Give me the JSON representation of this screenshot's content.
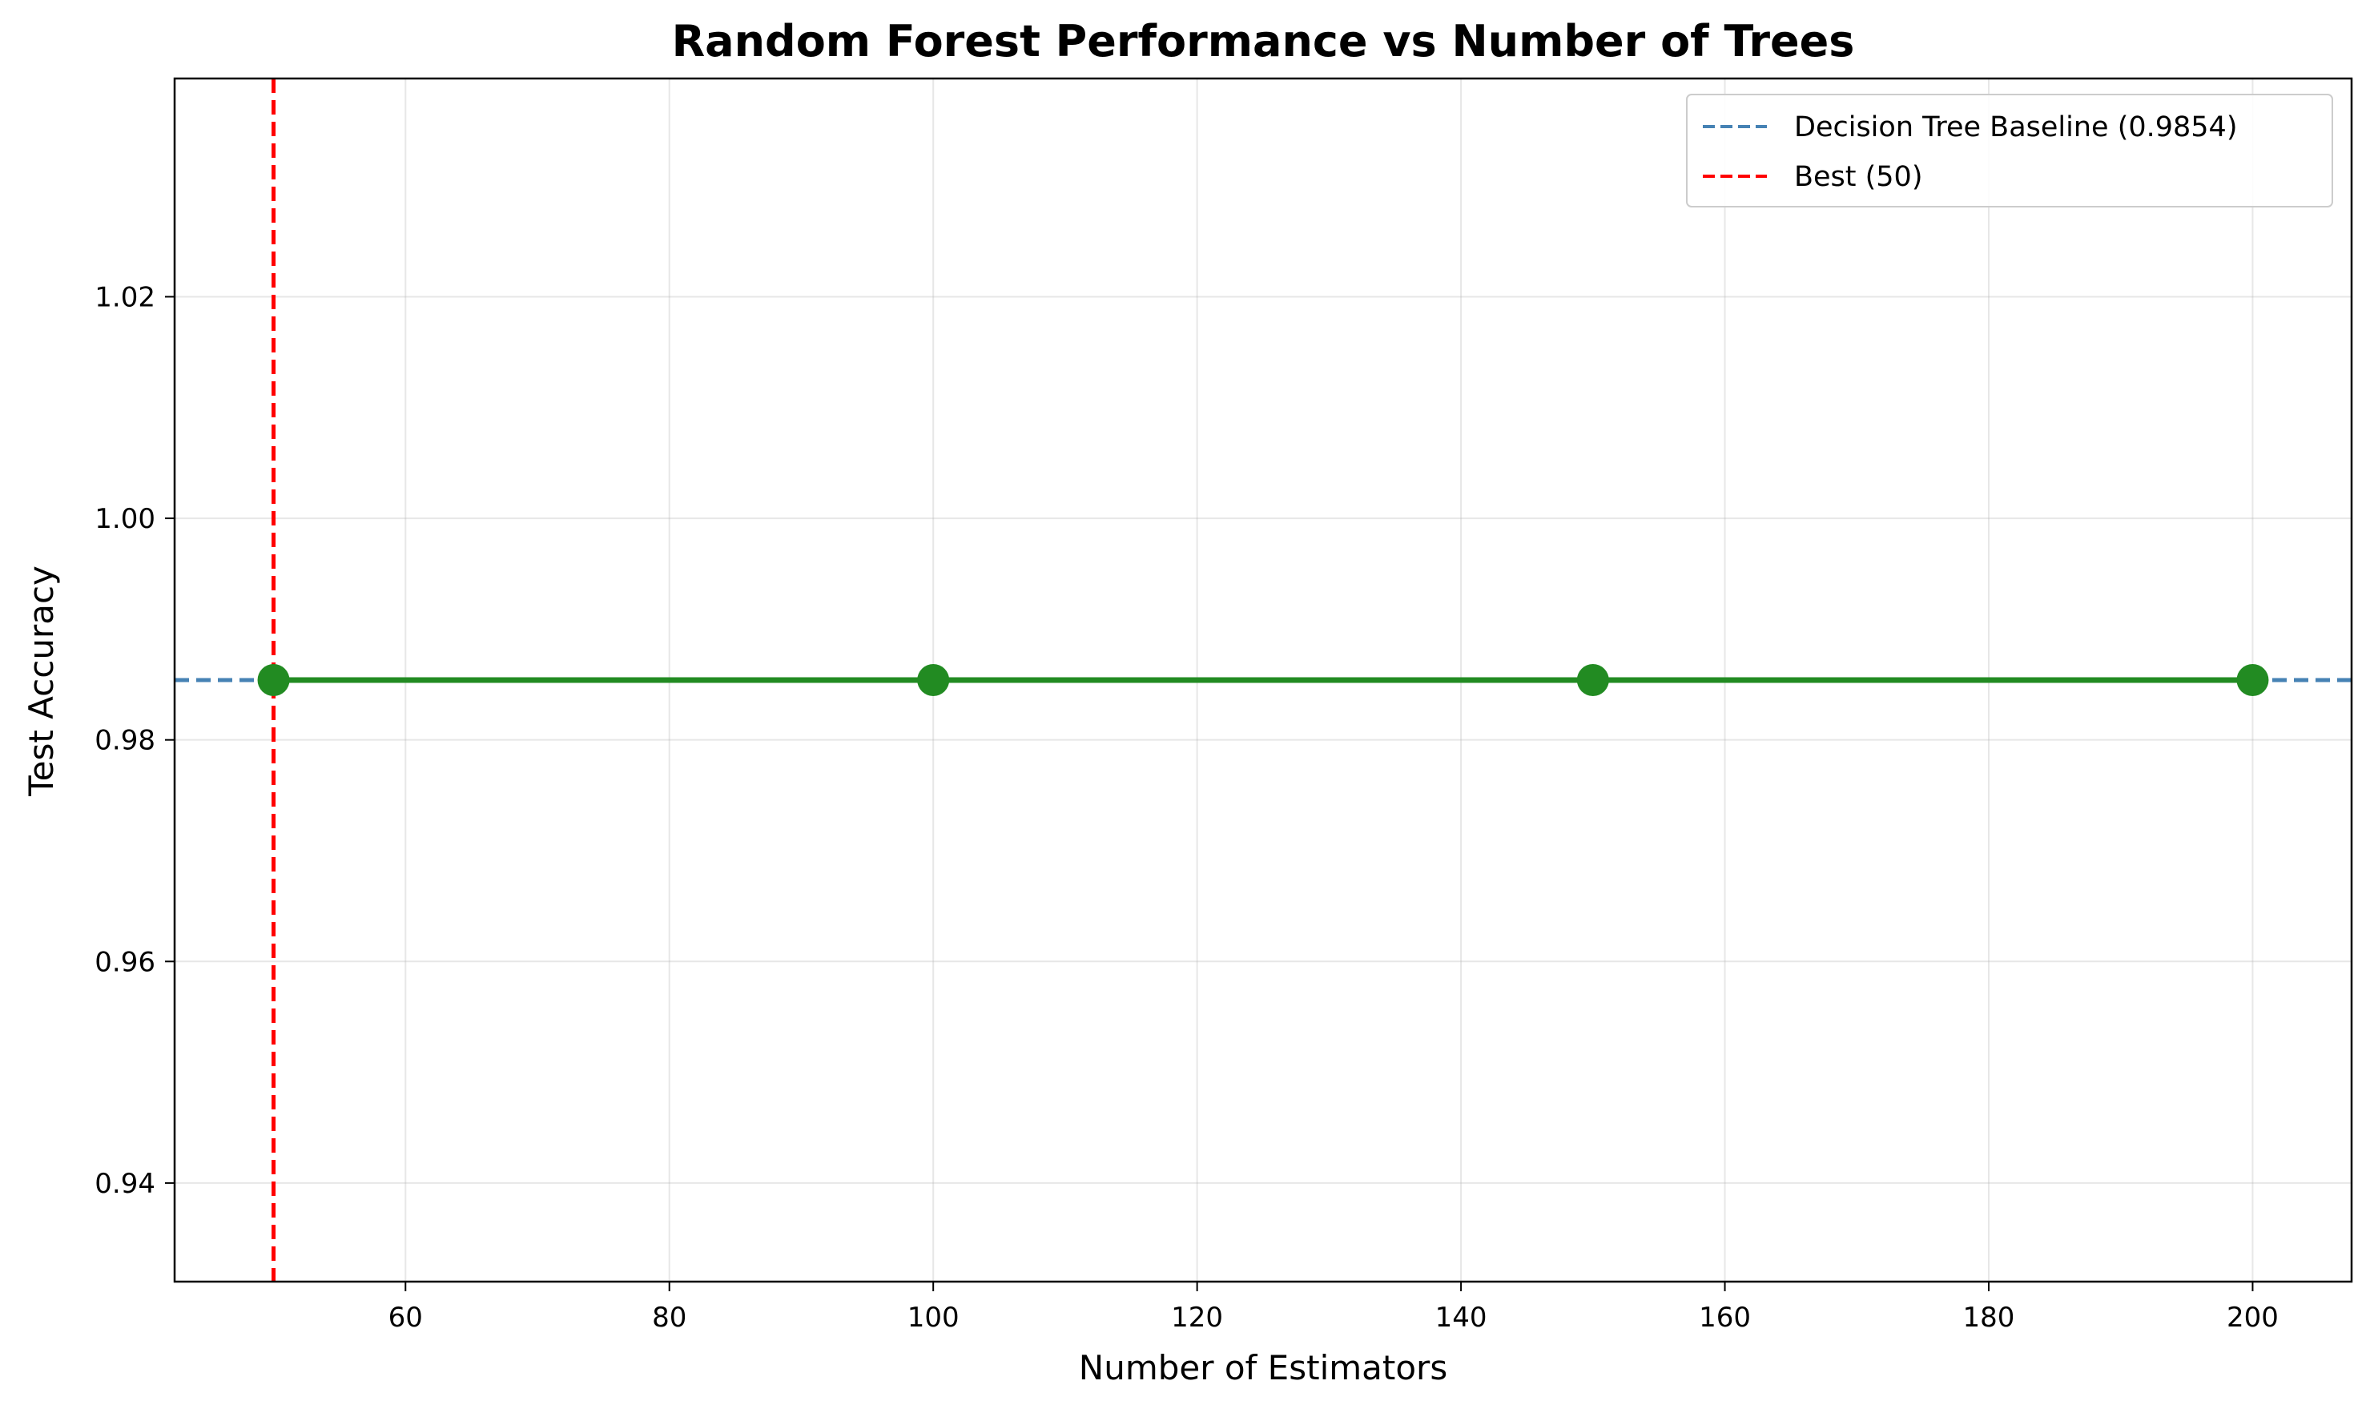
{
  "chart_data": {
    "type": "line",
    "title": "Random Forest Performance vs Number of Trees",
    "xlabel": "Number of Estimators",
    "ylabel": "Test Accuracy",
    "xlim": [
      42.5,
      207.5
    ],
    "ylim": [
      0.9311,
      1.0397
    ],
    "xticks": [
      60,
      80,
      100,
      120,
      140,
      160,
      180,
      200
    ],
    "yticks": [
      0.94,
      0.96,
      0.98,
      1.0,
      1.02
    ],
    "ytick_labels": [
      "0.94",
      "0.96",
      "0.98",
      "1.00",
      "1.02"
    ],
    "grid": true,
    "legend_position": "top-right",
    "series": [
      {
        "x": [
          50,
          100,
          150,
          200
        ],
        "y": [
          0.9854,
          0.9854,
          0.9854,
          0.9854
        ],
        "color": "#228b22",
        "style": "solid",
        "marker": "circle"
      }
    ],
    "reference_lines": [
      {
        "orientation": "horizontal",
        "value": 0.9854,
        "label": "Decision Tree Baseline (0.9854)",
        "color": "#4682b4",
        "style": "dashed"
      },
      {
        "orientation": "vertical",
        "value": 50,
        "label": "Best (50)",
        "color": "#ff0000",
        "style": "dashed"
      }
    ]
  }
}
